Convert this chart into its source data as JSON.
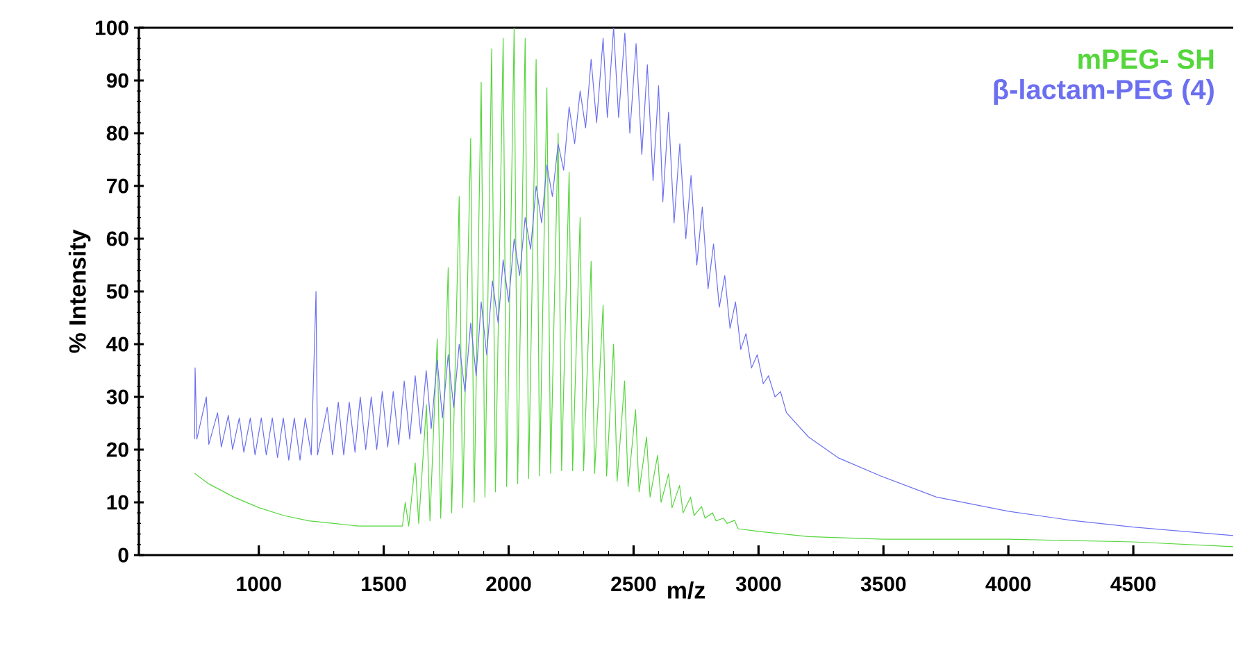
{
  "chart_data": {
    "type": "line",
    "xlabel": "m/z",
    "ylabel": "% Intensity",
    "xlim": [
      520,
      4900
    ],
    "ylim": [
      0,
      100
    ],
    "xticks": [
      1000,
      1500,
      2000,
      2500,
      3000,
      3500,
      4000,
      4500
    ],
    "yticks": [
      0,
      10,
      20,
      30,
      40,
      50,
      60,
      70,
      80,
      90,
      100
    ],
    "legend": "top right",
    "series": [
      {
        "name": "mPEG- SH",
        "color": "#55d63c",
        "x": [
          743,
          800,
          900,
          1000,
          1100,
          1200,
          1300,
          1400,
          1500,
          1575,
          1586,
          1600,
          1626,
          1640,
          1671,
          1685,
          1714,
          1728,
          1758,
          1772,
          1802,
          1816,
          1848,
          1862,
          1890,
          1905,
          1932,
          1947,
          1978,
          1992,
          2022,
          2036,
          2066,
          2080,
          2110,
          2124,
          2153,
          2168,
          2198,
          2212,
          2242,
          2256,
          2286,
          2300,
          2330,
          2344,
          2378,
          2392,
          2420,
          2434,
          2464,
          2478,
          2508,
          2522,
          2552,
          2566,
          2596,
          2610,
          2640,
          2654,
          2684,
          2698,
          2728,
          2742,
          2772,
          2786,
          2816,
          2830,
          2860,
          2874,
          2904,
          2918,
          3000,
          3200,
          3500,
          4000,
          4500,
          4900
        ],
        "values": [
          15.5,
          13.5,
          11,
          9,
          7.5,
          6.5,
          6,
          5.5,
          5.5,
          5.5,
          10,
          5.5,
          17.5,
          6,
          28.5,
          6.5,
          41,
          7,
          54.5,
          8,
          68,
          9,
          79,
          10,
          89.7,
          11,
          96,
          12,
          98,
          13,
          100,
          13.5,
          98,
          14.5,
          94,
          15,
          88.6,
          15.5,
          80,
          16,
          72.6,
          16,
          64,
          16,
          55.7,
          15.5,
          47.4,
          15,
          40,
          14,
          33,
          13,
          27.6,
          12,
          22.4,
          11,
          18.9,
          10,
          15.4,
          9,
          13.2,
          8,
          11,
          7.5,
          9.2,
          7,
          8,
          6.5,
          7,
          6,
          6.6,
          5,
          4.5,
          3.5,
          3,
          3,
          2.5,
          1.6
        ]
      },
      {
        "name": "β-lactam-PEG (4)",
        "color": "#6b6ff0",
        "x": [
          743,
          745,
          752,
          790,
          800,
          835,
          850,
          878,
          895,
          922,
          940,
          966,
          985,
          1010,
          1030,
          1054,
          1075,
          1098,
          1120,
          1142,
          1165,
          1186,
          1210,
          1229,
          1235,
          1274,
          1295,
          1318,
          1340,
          1362,
          1385,
          1406,
          1428,
          1450,
          1472,
          1494,
          1516,
          1538,
          1560,
          1582,
          1604,
          1626,
          1648,
          1670,
          1690,
          1714,
          1735,
          1758,
          1780,
          1802,
          1825,
          1848,
          1870,
          1890,
          1912,
          1935,
          1958,
          1978,
          2000,
          2022,
          2044,
          2066,
          2088,
          2110,
          2132,
          2153,
          2175,
          2198,
          2220,
          2242,
          2264,
          2286,
          2308,
          2330,
          2352,
          2378,
          2395,
          2420,
          2440,
          2465,
          2485,
          2510,
          2533,
          2555,
          2578,
          2600,
          2617,
          2640,
          2662,
          2685,
          2709,
          2730,
          2753,
          2775,
          2798,
          2820,
          2843,
          2865,
          2886,
          2908,
          2929,
          2950,
          2972,
          2995,
          3019,
          3040,
          3066,
          3088,
          3112,
          3200,
          3321,
          3489,
          3712,
          4000,
          4250,
          4500,
          4900
        ],
        "values": [
          22,
          35.5,
          22,
          30,
          21,
          27,
          20.5,
          26.5,
          20,
          26,
          19.5,
          26,
          19,
          26,
          19,
          26,
          18.5,
          26,
          18,
          26,
          18,
          26,
          19,
          50,
          19,
          28,
          19,
          29,
          19,
          29,
          19.5,
          30,
          20,
          30,
          20,
          31,
          20.5,
          31,
          21,
          33,
          22,
          34,
          23,
          35,
          24,
          37,
          26,
          38,
          28,
          40,
          31,
          44,
          34,
          48,
          38,
          52,
          44,
          56,
          48,
          60,
          53,
          64,
          58,
          70,
          63,
          74,
          68,
          78,
          73,
          85,
          78,
          88,
          81,
          94,
          82,
          98,
          83,
          100,
          83,
          99,
          80,
          97,
          76,
          93,
          71,
          89,
          67,
          84,
          63,
          78,
          60,
          72,
          55,
          66,
          50.5,
          59,
          47,
          53,
          43,
          48,
          39,
          42,
          35.5,
          38,
          32.5,
          34,
          30,
          31,
          27,
          22.4,
          18.4,
          15,
          11,
          8.3,
          6.6,
          5.3,
          3.7
        ]
      }
    ]
  }
}
